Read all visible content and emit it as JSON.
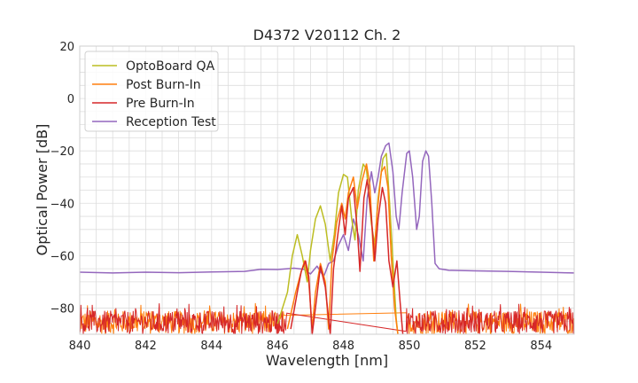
{
  "chart_data": {
    "type": "line",
    "title": "D4372 V20112 Ch. 2",
    "xlabel": "Wavelength [nm]",
    "ylabel": "Optical Power [dB]",
    "xlim": [
      840,
      855
    ],
    "ylim": [
      -90,
      20
    ],
    "xticks": [
      840,
      842,
      844,
      846,
      848,
      850,
      852,
      854
    ],
    "yticks": [
      -80,
      -60,
      -40,
      -20,
      0,
      20
    ],
    "grid": true,
    "legend_position": "top-left",
    "noise_floor_range_db": [
      -90,
      -78
    ],
    "series": [
      {
        "name": "OptoBoard QA",
        "color": "#bcbd22",
        "points": [
          [
            846.0,
            -86
          ],
          [
            846.3,
            -74
          ],
          [
            846.45,
            -60
          ],
          [
            846.6,
            -52
          ],
          [
            846.75,
            -60
          ],
          [
            846.9,
            -70
          ],
          [
            847.0,
            -58
          ],
          [
            847.15,
            -46
          ],
          [
            847.3,
            -41
          ],
          [
            847.45,
            -48
          ],
          [
            847.6,
            -62
          ],
          [
            847.72,
            -52
          ],
          [
            847.85,
            -36
          ],
          [
            848.0,
            -29
          ],
          [
            848.12,
            -30
          ],
          [
            848.25,
            -46
          ],
          [
            848.35,
            -54
          ],
          [
            848.45,
            -35
          ],
          [
            848.6,
            -25
          ],
          [
            848.7,
            -27
          ],
          [
            848.85,
            -48
          ],
          [
            848.95,
            -56
          ],
          [
            849.05,
            -38
          ],
          [
            849.2,
            -23
          ],
          [
            849.3,
            -21
          ],
          [
            849.4,
            -40
          ],
          [
            849.5,
            -62
          ],
          [
            849.6,
            -84
          ],
          [
            849.65,
            -90
          ]
        ]
      },
      {
        "name": "Post Burn-In",
        "color": "#ff7f0e",
        "points": [
          [
            846.3,
            -88
          ],
          [
            846.55,
            -74
          ],
          [
            846.7,
            -67
          ],
          [
            846.82,
            -62
          ],
          [
            846.95,
            -70
          ],
          [
            847.05,
            -88
          ],
          [
            847.15,
            -74
          ],
          [
            847.3,
            -63
          ],
          [
            847.45,
            -70
          ],
          [
            847.55,
            -88
          ],
          [
            847.65,
            -62
          ],
          [
            847.8,
            -47
          ],
          [
            847.95,
            -40
          ],
          [
            848.05,
            -46
          ],
          [
            848.15,
            -36
          ],
          [
            848.3,
            -30
          ],
          [
            848.42,
            -42
          ],
          [
            848.55,
            -32
          ],
          [
            848.7,
            -25
          ],
          [
            848.8,
            -33
          ],
          [
            848.92,
            -62
          ],
          [
            849.02,
            -44
          ],
          [
            849.15,
            -28
          ],
          [
            849.25,
            -26
          ],
          [
            849.35,
            -34
          ],
          [
            849.45,
            -60
          ],
          [
            849.55,
            -80
          ],
          [
            849.65,
            -90
          ]
        ]
      },
      {
        "name": "Pre Burn-In",
        "color": "#d62728",
        "points": [
          [
            846.4,
            -88
          ],
          [
            846.6,
            -74
          ],
          [
            846.72,
            -66
          ],
          [
            846.85,
            -62
          ],
          [
            846.95,
            -68
          ],
          [
            847.05,
            -90
          ],
          [
            847.15,
            -80
          ],
          [
            847.3,
            -64
          ],
          [
            847.45,
            -72
          ],
          [
            847.6,
            -90
          ],
          [
            847.7,
            -65
          ],
          [
            847.85,
            -50
          ],
          [
            847.95,
            -41
          ],
          [
            848.05,
            -52
          ],
          [
            848.15,
            -38
          ],
          [
            848.3,
            -34
          ],
          [
            848.42,
            -50
          ],
          [
            848.5,
            -66
          ],
          [
            848.62,
            -38
          ],
          [
            848.72,
            -31
          ],
          [
            848.85,
            -46
          ],
          [
            848.95,
            -62
          ],
          [
            849.05,
            -46
          ],
          [
            849.18,
            -34
          ],
          [
            849.28,
            -40
          ],
          [
            849.38,
            -62
          ],
          [
            849.5,
            -72
          ],
          [
            849.62,
            -62
          ],
          [
            849.72,
            -78
          ],
          [
            849.8,
            -90
          ]
        ]
      },
      {
        "name": "Reception Test",
        "color": "#9467bd",
        "points": [
          [
            840.0,
            -66.3
          ],
          [
            841.0,
            -66.6
          ],
          [
            842.0,
            -66.3
          ],
          [
            843.0,
            -66.5
          ],
          [
            844.0,
            -66.2
          ],
          [
            845.0,
            -66.0
          ],
          [
            845.5,
            -65.2
          ],
          [
            846.0,
            -65.3
          ],
          [
            846.3,
            -65.0
          ],
          [
            846.5,
            -64.8
          ],
          [
            846.8,
            -65.2
          ],
          [
            847.0,
            -67
          ],
          [
            847.2,
            -64
          ],
          [
            847.4,
            -68
          ],
          [
            847.55,
            -63
          ],
          [
            847.7,
            -62
          ],
          [
            847.85,
            -56
          ],
          [
            848.0,
            -52
          ],
          [
            848.15,
            -58
          ],
          [
            848.3,
            -46
          ],
          [
            848.45,
            -52
          ],
          [
            848.6,
            -62
          ],
          [
            848.72,
            -38
          ],
          [
            848.85,
            -28
          ],
          [
            848.95,
            -36
          ],
          [
            849.05,
            -30
          ],
          [
            849.15,
            -22
          ],
          [
            849.28,
            -18
          ],
          [
            849.38,
            -17
          ],
          [
            849.5,
            -28
          ],
          [
            849.6,
            -45
          ],
          [
            849.68,
            -50
          ],
          [
            849.78,
            -36
          ],
          [
            849.92,
            -21
          ],
          [
            850.0,
            -20
          ],
          [
            850.1,
            -30
          ],
          [
            850.22,
            -50
          ],
          [
            850.3,
            -45
          ],
          [
            850.4,
            -24
          ],
          [
            850.5,
            -20
          ],
          [
            850.58,
            -22
          ],
          [
            850.68,
            -40
          ],
          [
            850.78,
            -63
          ],
          [
            850.9,
            -65
          ],
          [
            851.2,
            -65.6
          ],
          [
            852.0,
            -65.8
          ],
          [
            853.0,
            -66.0
          ],
          [
            854.0,
            -66.3
          ],
          [
            855.0,
            -66.6
          ]
        ]
      }
    ]
  }
}
